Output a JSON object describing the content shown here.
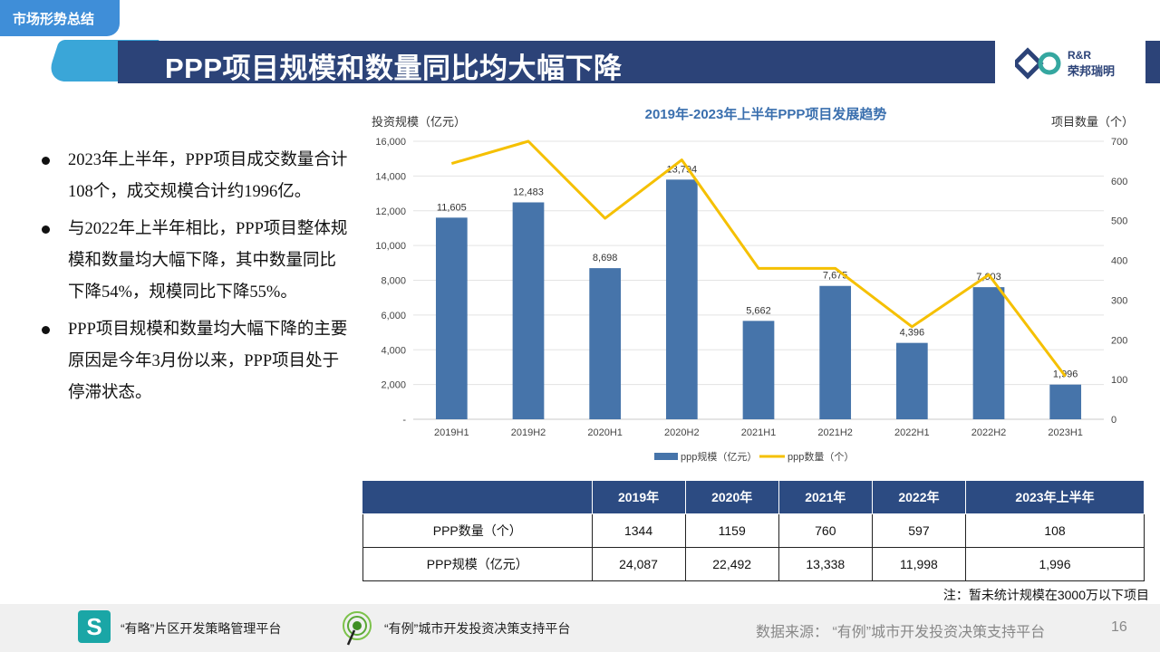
{
  "section_tag": "市场形势总结",
  "title": "PPP项目规模和数量同比均大幅下降",
  "logo": {
    "en": "R&R",
    "cn": "荣邦瑞明",
    "icon": "rr-logo-icon"
  },
  "bullets": [
    "2023年上半年，PPP项目成交数量合计108个，成交规模合计约1996亿。",
    "与2022年上半年相比，PPP项目整体规模和数量均大幅下降，其中数量同比下降54%，规模同比下降55%。",
    "PPP项目规模和数量均大幅下降的主要原因是今年3月份以来，PPP项目处于停滞状态。"
  ],
  "chart_data": {
    "type": "bar",
    "title": "2019年-2023年上半年PPP项目发展趋势",
    "ylabel": "投资规模（亿元）",
    "y2label": "项目数量（个）",
    "categories": [
      "2019H1",
      "2019H2",
      "2020H1",
      "2020H2",
      "2021H1",
      "2021H2",
      "2022H1",
      "2022H2",
      "2023H1"
    ],
    "ylim": [
      0,
      16000
    ],
    "yticks": [
      0,
      2000,
      4000,
      6000,
      8000,
      10000,
      12000,
      14000,
      16000
    ],
    "ytick_labels": [
      "-",
      "2,000",
      "4,000",
      "6,000",
      "8,000",
      "10,000",
      "12,000",
      "14,000",
      "16,000"
    ],
    "y2lim": [
      0,
      700
    ],
    "y2ticks": [
      0,
      100,
      200,
      300,
      400,
      500,
      600,
      700
    ],
    "series": [
      {
        "name": "ppp规模（亿元）",
        "type": "bar",
        "axis": "left",
        "color": "#4674aa",
        "values": [
          11605,
          12483,
          8698,
          13794,
          5662,
          7675,
          4396,
          7603,
          1996
        ],
        "labels": [
          "11,605",
          "12,483",
          "8,698",
          "13,794",
          "5,662",
          "7,675",
          "4,396",
          "7,603",
          "1,996"
        ]
      },
      {
        "name": "ppp数量（个）",
        "type": "line",
        "axis": "right",
        "color": "#f5c000",
        "values": [
          644,
          700,
          506,
          653,
          380,
          380,
          233,
          364,
          108
        ]
      }
    ],
    "legend": "bottom",
    "grid": true
  },
  "table": {
    "headers": [
      "",
      "2019年",
      "2020年",
      "2021年",
      "2022年",
      "2023年上半年"
    ],
    "rows": [
      [
        "PPP数量（个）",
        "1344",
        "1159",
        "760",
        "597",
        "108"
      ],
      [
        "PPP规模（亿元）",
        "24,087",
        "22,492",
        "13,338",
        "11,998",
        "1,996"
      ]
    ]
  },
  "note": "注：暂未统计规模在3000万以下项目",
  "footer": {
    "platform1": "“有略”片区开发策略管理平台",
    "platform2": "“有例”城市开发投资决策支持平台",
    "source": "数据来源：  “有例”城市开发投资决策支持平台",
    "page": "16",
    "icon1_glyph": "S"
  }
}
